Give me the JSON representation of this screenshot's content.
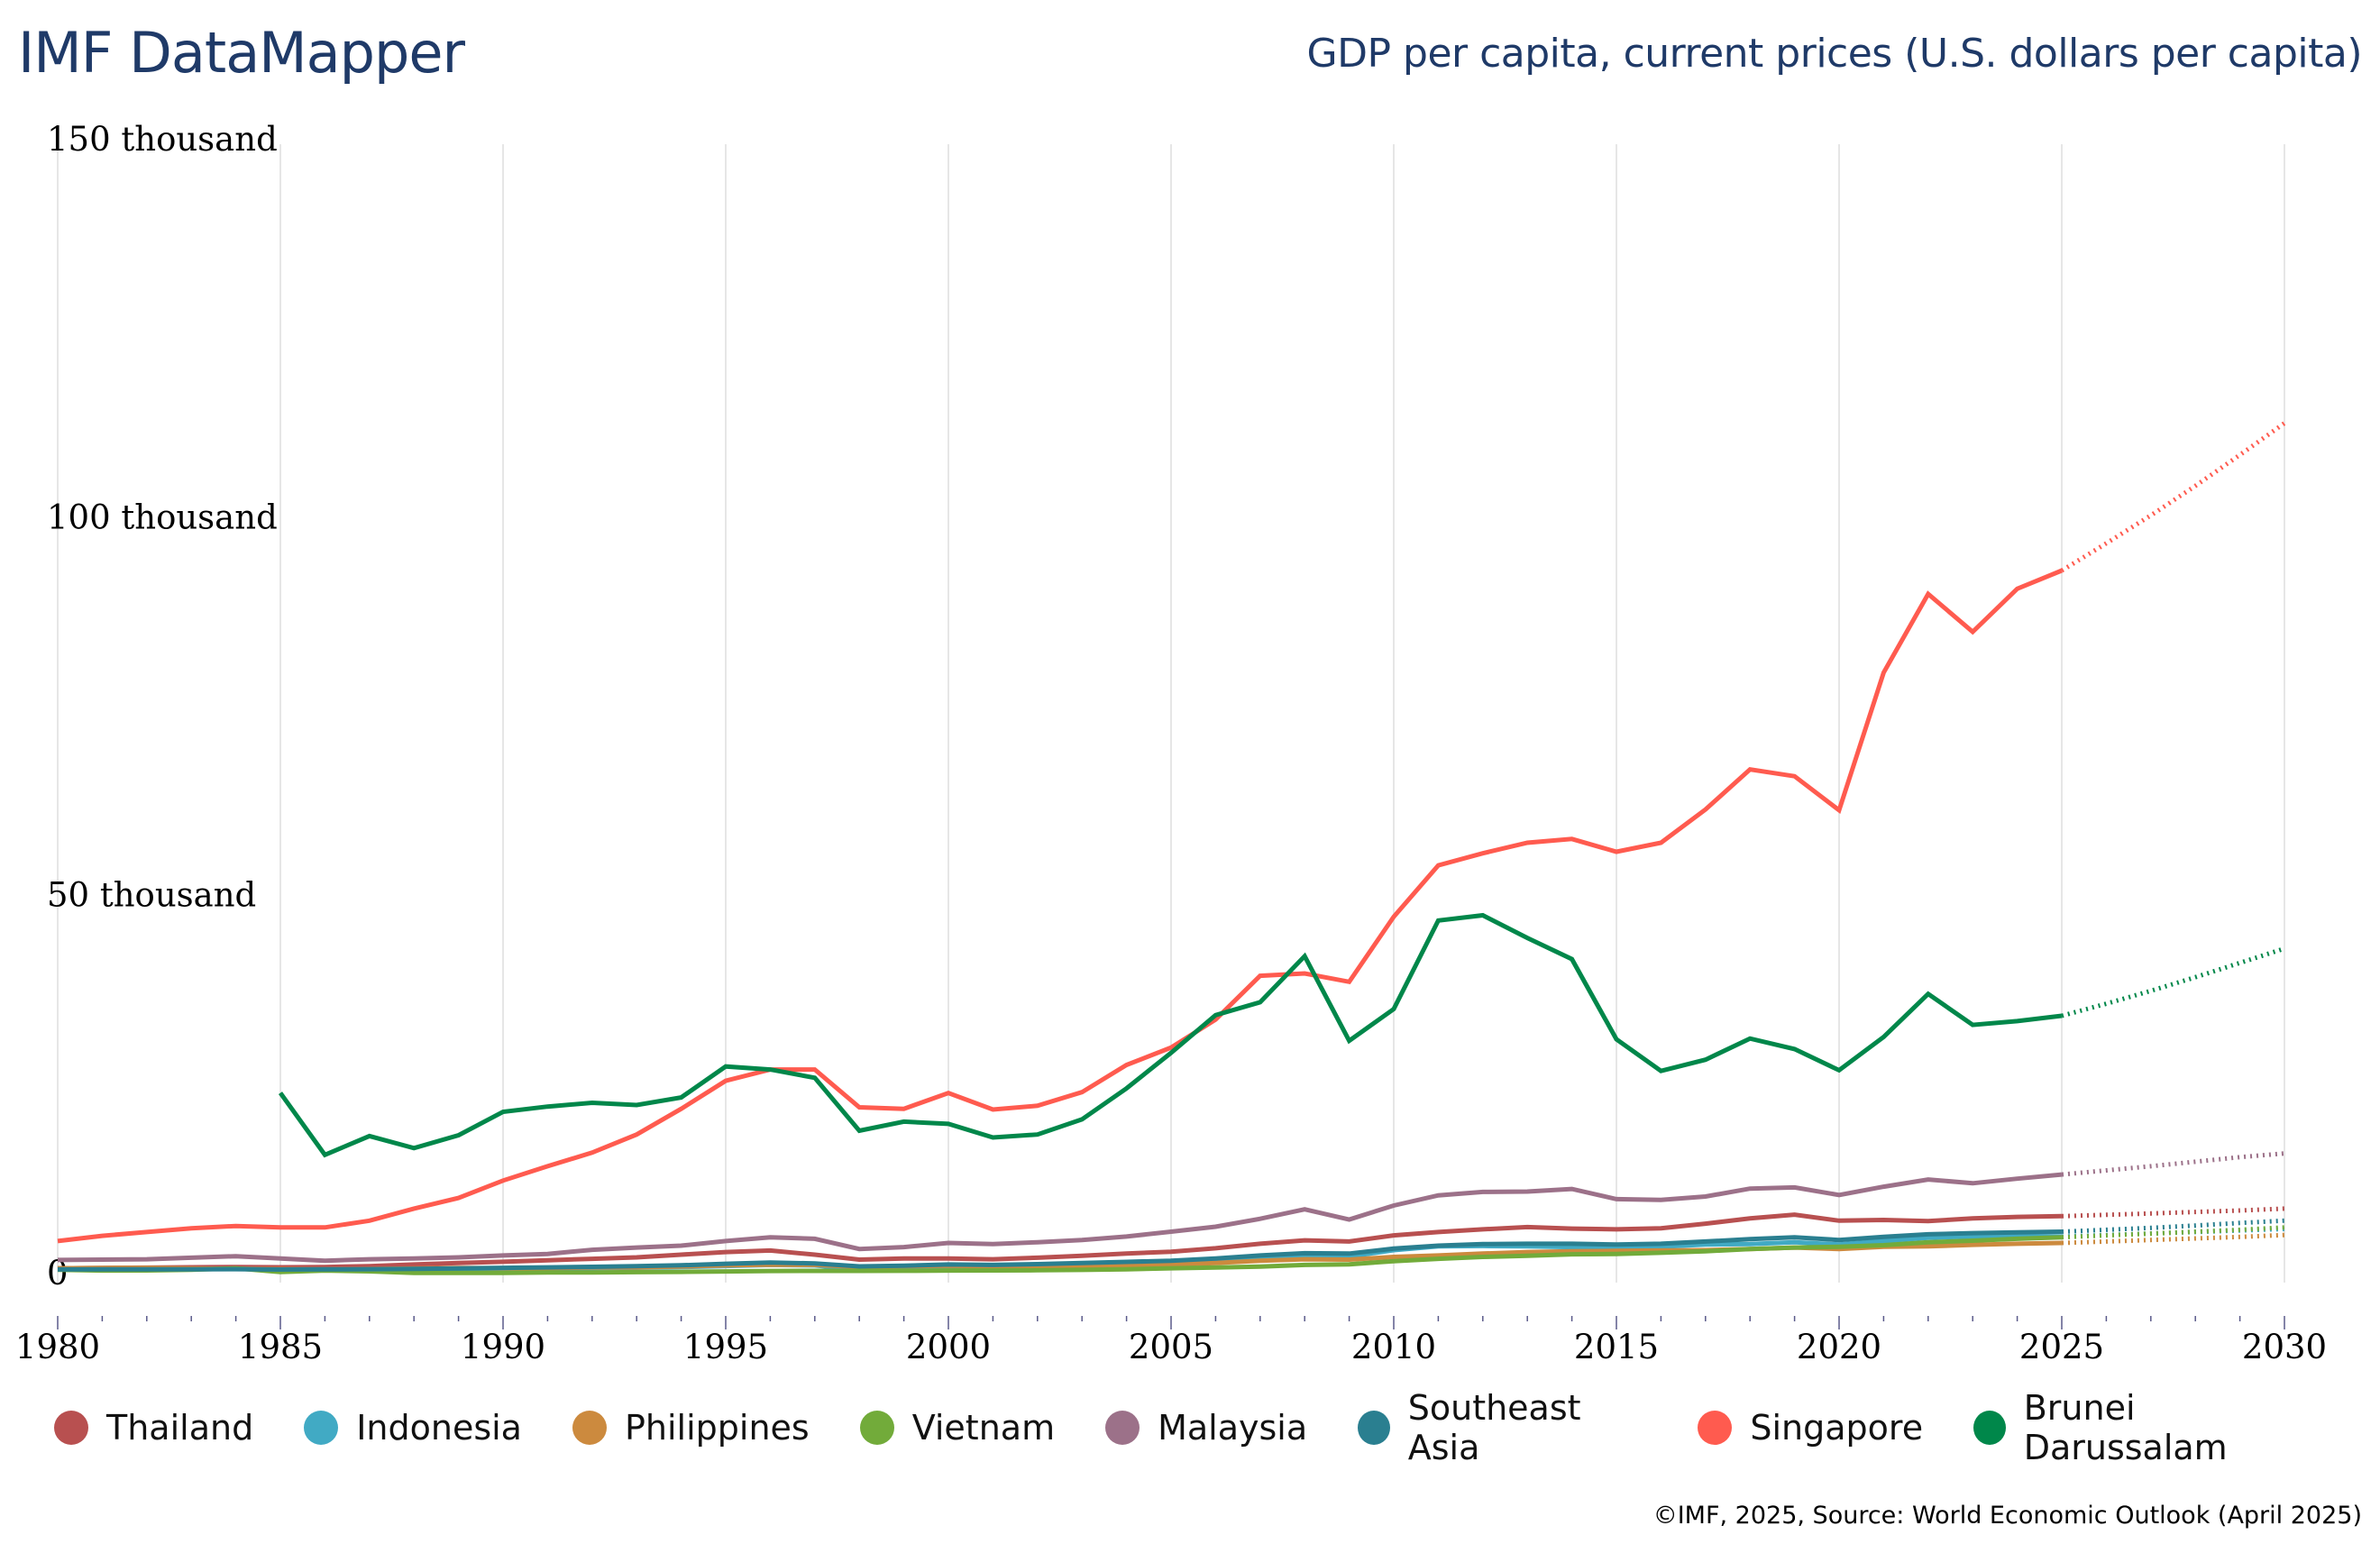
{
  "header": {
    "brand": "IMF DataMapper",
    "indicator_title": "GDP per capita, current prices (U.S. dollars per capita)"
  },
  "footer": {
    "source": "©IMF, 2025, Source: World Economic Outlook (April 2025)"
  },
  "colors": {
    "gridline": "#dddddd",
    "tick": "#5a5a8a",
    "brand": "#1f3a68"
  },
  "chart_data": {
    "type": "line",
    "title": "GDP per capita, current prices (U.S. dollars per capita)",
    "xlabel": "",
    "ylabel": "",
    "xlim": [
      1980,
      2030
    ],
    "ylim": [
      0,
      150000
    ],
    "yticks": [
      {
        "value": 0,
        "label": "0"
      },
      {
        "value": 50000,
        "label": "50 thousand"
      },
      {
        "value": 100000,
        "label": "100 thousand"
      },
      {
        "value": 150000,
        "label": "150 thousand"
      }
    ],
    "xticks": [
      {
        "value": 1980,
        "label": "1980"
      },
      {
        "value": 1985,
        "label": "1985"
      },
      {
        "value": 1990,
        "label": "1990"
      },
      {
        "value": 1995,
        "label": "1995"
      },
      {
        "value": 2000,
        "label": "2000"
      },
      {
        "value": 2005,
        "label": "2005"
      },
      {
        "value": 2010,
        "label": "2010"
      },
      {
        "value": 2015,
        "label": "2015"
      },
      {
        "value": 2020,
        "label": "2020"
      },
      {
        "value": 2025,
        "label": "2025"
      },
      {
        "value": 2030,
        "label": "2030"
      }
    ],
    "grid": "vertical",
    "legend_position": "bottom",
    "projection_start": 2025,
    "x": [
      1980,
      1981,
      1982,
      1983,
      1984,
      1985,
      1986,
      1987,
      1988,
      1989,
      1990,
      1991,
      1992,
      1993,
      1994,
      1995,
      1996,
      1997,
      1998,
      1999,
      2000,
      2001,
      2002,
      2003,
      2004,
      2005,
      2006,
      2007,
      2008,
      2009,
      2010,
      2011,
      2012,
      2013,
      2014,
      2015,
      2016,
      2017,
      2018,
      2019,
      2020,
      2021,
      2022,
      2023,
      2024,
      2025,
      2026,
      2027,
      2028,
      2029,
      2030
    ],
    "series": [
      {
        "name": "Thailand",
        "color": "#B85050",
        "values": [
          700,
          750,
          790,
          840,
          870,
          830,
          870,
          990,
          1200,
          1400,
          1560,
          1760,
          1950,
          2150,
          2500,
          2850,
          3050,
          2500,
          1850,
          2000,
          2000,
          1900,
          2100,
          2350,
          2650,
          2900,
          3350,
          3950,
          4400,
          4250,
          5050,
          5500,
          5850,
          6150,
          5950,
          5850,
          6000,
          6600,
          7300,
          7800,
          7000,
          7100,
          6950,
          7300,
          7500,
          7600,
          7780,
          7950,
          8150,
          8350,
          8600
        ]
      },
      {
        "name": "Indonesia",
        "color": "#41AAC4",
        "values": [
          600,
          650,
          680,
          640,
          620,
          580,
          520,
          480,
          510,
          560,
          620,
          680,
          720,
          780,
          860,
          1000,
          1150,
          1080,
          500,
          700,
          800,
          800,
          950,
          1100,
          1150,
          1250,
          1600,
          1850,
          2150,
          2250,
          3100,
          3600,
          3650,
          3600,
          3500,
          3300,
          3550,
          3850,
          3900,
          4150,
          3850,
          4300,
          4750,
          4900,
          4950,
          4900,
          5100,
          5300,
          5500,
          5700,
          5900
        ]
      },
      {
        "name": "Philippines",
        "color": "#CC8A3E",
        "values": [
          700,
          750,
          760,
          680,
          620,
          600,
          570,
          610,
          680,
          750,
          720,
          720,
          820,
          820,
          940,
          1080,
          1180,
          1150,
          890,
          980,
          1050,
          960,
          1000,
          1000,
          1050,
          1200,
          1400,
          1700,
          1900,
          1850,
          2200,
          2400,
          2650,
          2850,
          2950,
          3000,
          3050,
          3100,
          3250,
          3450,
          3250,
          3550,
          3600,
          3800,
          3950,
          4050,
          4250,
          4450,
          4650,
          4850,
          5100
        ]
      },
      {
        "name": "Vietnam",
        "color": "#72AB3A",
        "values": [
          500,
          400,
          420,
          500,
          700,
          200,
          400,
          300,
          100,
          100,
          100,
          140,
          150,
          190,
          230,
          290,
          340,
          360,
          360,
          370,
          400,
          420,
          440,
          490,
          560,
          700,
          800,
          930,
          1150,
          1230,
          1650,
          1950,
          2200,
          2350,
          2550,
          2600,
          2750,
          2950,
          3250,
          3450,
          3550,
          3750,
          4150,
          4350,
          4600,
          4800,
          5050,
          5300,
          5550,
          5800,
          6100
        ]
      },
      {
        "name": "Malaysia",
        "color": "#9C7189",
        "values": [
          1800,
          1850,
          1900,
          2100,
          2300,
          2000,
          1700,
          1900,
          2000,
          2150,
          2400,
          2600,
          3150,
          3450,
          3700,
          4300,
          4800,
          4600,
          3250,
          3500,
          4050,
          3900,
          4150,
          4450,
          4900,
          5550,
          6200,
          7250,
          8500,
          7150,
          9000,
          10350,
          10800,
          10850,
          11200,
          9850,
          9750,
          10200,
          11250,
          11400,
          10400,
          11500,
          12450,
          11950,
          12550,
          13100,
          13650,
          14200,
          14800,
          15400,
          15900
        ]
      },
      {
        "name": "Southeast Asia",
        "color": "#2A7F90",
        "values": [
          550,
          560,
          560,
          560,
          580,
          540,
          560,
          580,
          620,
          680,
          760,
          820,
          900,
          980,
          1100,
          1300,
          1450,
          1350,
          950,
          1050,
          1200,
          1150,
          1250,
          1400,
          1550,
          1700,
          2000,
          2400,
          2700,
          2650,
          3300,
          3700,
          3900,
          3950,
          3950,
          3850,
          3950,
          4250,
          4550,
          4800,
          4450,
          4850,
          5200,
          5350,
          5450,
          5550,
          5800,
          6050,
          6350,
          6700,
          7000
        ]
      },
      {
        "name": "Singapore",
        "color": "#FF5B4F",
        "values": [
          4300,
          5000,
          5500,
          6000,
          6300,
          6100,
          6100,
          7000,
          8600,
          10000,
          12300,
          14200,
          16000,
          18400,
          21800,
          25500,
          27000,
          27000,
          22000,
          21800,
          23900,
          21700,
          22200,
          24000,
          27600,
          29900,
          33600,
          39400,
          39700,
          38600,
          47200,
          54000,
          55600,
          57000,
          57500,
          55800,
          57000,
          61400,
          66700,
          65800,
          61300,
          79500,
          89900,
          84900,
          90600,
          93000,
          96600,
          100300,
          104200,
          108300,
          112500
        ]
      },
      {
        "name": "Brunei Darussalam",
        "color": "#00874A",
        "values": [
          null,
          null,
          null,
          null,
          null,
          23900,
          15700,
          18200,
          16600,
          18300,
          21400,
          22100,
          22600,
          22300,
          23300,
          27400,
          27000,
          25900,
          18900,
          20100,
          19800,
          18000,
          18400,
          20400,
          24500,
          29200,
          34200,
          35900,
          42000,
          30800,
          35000,
          46700,
          47400,
          44400,
          41600,
          31000,
          26800,
          28300,
          31100,
          29700,
          26900,
          31300,
          37000,
          32900,
          33400,
          34100,
          35700,
          37400,
          39200,
          41100,
          43000
        ]
      }
    ]
  }
}
